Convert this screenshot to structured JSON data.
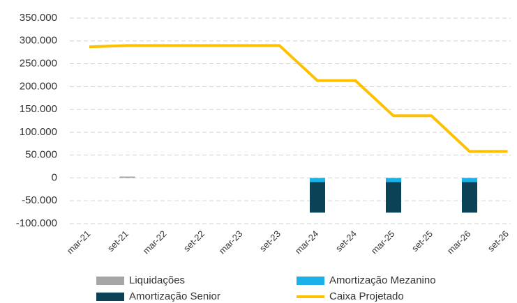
{
  "chart_data": {
    "type": "bar",
    "categories": [
      "mar-21",
      "set-21",
      "mar-22",
      "set-22",
      "mar-23",
      "set-23",
      "mar-24",
      "set-24",
      "mar-25",
      "set-25",
      "mar-26",
      "set-26"
    ],
    "series": [
      {
        "name": "Liquidações",
        "color": "#a6a6a6",
        "type": "bar",
        "values": [
          null,
          3000,
          null,
          null,
          null,
          null,
          null,
          null,
          null,
          null,
          null,
          null
        ]
      },
      {
        "name": "Amortização Mezanino",
        "color": "#1ab0e8",
        "type": "bar",
        "values": [
          null,
          null,
          null,
          null,
          null,
          null,
          -9000,
          null,
          -9000,
          null,
          -9000,
          null
        ]
      },
      {
        "name": "Amortização Senior",
        "color": "#0b4256",
        "type": "bar",
        "values": [
          null,
          null,
          null,
          null,
          null,
          null,
          -67000,
          null,
          -67000,
          null,
          -67000,
          null
        ]
      },
      {
        "name": "Caixa Projetado",
        "color": "#ffc000",
        "type": "line",
        "values": [
          287000,
          290000,
          290000,
          290000,
          290000,
          290000,
          213000,
          213000,
          136000,
          136000,
          58000,
          58000
        ]
      }
    ],
    "ylim": [
      -100000,
      350000
    ],
    "yticks": [
      {
        "value": -100000,
        "label": "-100.000"
      },
      {
        "value": -50000,
        "label": "-50.000"
      },
      0,
      {
        "value": 50000,
        "label": "50.000"
      },
      {
        "value": 100000,
        "label": "100.000"
      },
      {
        "value": 150000,
        "label": "150.000"
      },
      {
        "value": 200000,
        "label": "200.000"
      },
      {
        "value": 250000,
        "label": "250.000"
      },
      {
        "value": 300000,
        "label": "300.000"
      },
      {
        "value": 350000,
        "label": "350.000"
      }
    ],
    "grid": true,
    "legend": "bottom"
  }
}
